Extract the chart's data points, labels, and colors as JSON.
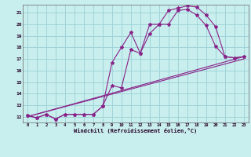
{
  "xlabel": "Windchill (Refroidissement éolien,°C)",
  "bg_color": "#c8eeee",
  "grid_color": "#a0d4d8",
  "line_color": "#882288",
  "xlim": [
    -0.5,
    23.5
  ],
  "ylim": [
    11.5,
    21.7
  ],
  "yticks": [
    12,
    13,
    14,
    15,
    16,
    17,
    18,
    19,
    20,
    21
  ],
  "xticks": [
    0,
    1,
    2,
    3,
    4,
    5,
    6,
    7,
    8,
    9,
    10,
    11,
    12,
    13,
    14,
    15,
    16,
    17,
    18,
    19,
    20,
    21,
    22,
    23
  ],
  "line1_x": [
    0,
    1,
    2,
    3,
    4,
    5,
    6,
    7,
    8,
    9,
    10,
    11,
    12,
    13,
    14,
    15,
    16,
    17,
    18,
    19,
    20,
    21,
    22,
    23
  ],
  "line1_y": [
    12.1,
    11.9,
    12.2,
    11.8,
    12.2,
    12.2,
    12.2,
    12.2,
    12.9,
    14.7,
    14.5,
    17.8,
    17.5,
    19.2,
    20.0,
    20.0,
    21.2,
    21.3,
    20.8,
    19.9,
    18.1,
    17.2,
    17.1,
    17.2
  ],
  "line2_x": [
    0,
    1,
    2,
    3,
    4,
    5,
    6,
    7,
    8,
    9,
    10,
    11,
    12,
    13,
    14,
    15,
    16,
    17,
    18,
    19,
    20,
    21,
    22,
    23
  ],
  "line2_y": [
    12.1,
    11.9,
    12.2,
    11.8,
    12.2,
    12.2,
    12.2,
    12.2,
    12.9,
    16.7,
    18.0,
    19.3,
    17.5,
    20.0,
    20.0,
    21.2,
    21.4,
    21.6,
    21.5,
    20.8,
    19.8,
    17.2,
    17.1,
    17.2
  ],
  "line3_x": [
    0,
    23
  ],
  "line3_y": [
    12.0,
    17.0
  ],
  "line4_x": [
    0,
    23
  ],
  "line4_y": [
    12.0,
    17.2
  ]
}
